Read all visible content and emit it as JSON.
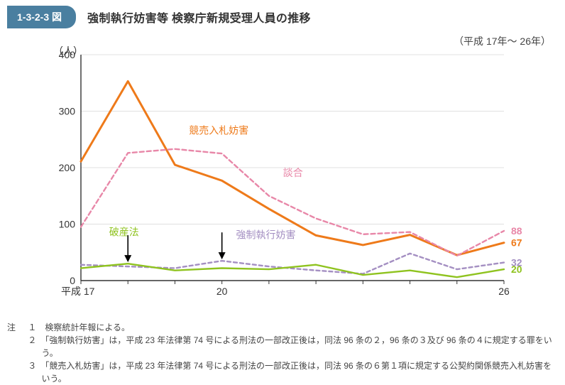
{
  "figure_tag": "1-3-2-3 図",
  "title": "強制執行妨害等 検察庁新規受理人員の推移",
  "subtitle": "（平成 17年～ 26年）",
  "notes_label": "注",
  "notes": [
    "１　検察統計年報による。",
    "２　「強制執行妨害」は，平成 23 年法律第 74 号による刑法の一部改正後は，同法 96 条の２，96 条の３及び 96 条の４に規定する罪をいう。",
    "３　「競売入札妨害」は，平成 23 年法律第 74 号による刑法の一部改正後は，同法 96 条の６第１項に規定する公契約関係競売入札妨害をいう。"
  ],
  "chart": {
    "type": "line",
    "x_label_prefix": "平成",
    "y_unit_label": "（人）",
    "background_color": "#ffffff",
    "axis_color": "#333333",
    "grid_color": "#e0e0e0",
    "label_fontsize": 14,
    "tick_fontsize": 14,
    "ylim": [
      0,
      400
    ],
    "ytick_step": 100,
    "x_categories": [
      "17",
      "18",
      "19",
      "20",
      "21",
      "22",
      "23",
      "24",
      "25",
      "26"
    ],
    "x_visible_ticks": [
      "17",
      "20",
      "26"
    ],
    "series": [
      {
        "key": "kyobai",
        "name": "競売入札妨害",
        "color": "#ee7a1a",
        "dash": "none",
        "width": 3,
        "label_x": 2.3,
        "label_y": 260,
        "end_value_label": "67",
        "values": [
          211,
          353,
          205,
          177,
          127,
          80,
          63,
          81,
          45,
          67
        ]
      },
      {
        "key": "dango",
        "name": "談合",
        "color": "#e887a8",
        "dash": "6,4",
        "width": 2.4,
        "label_x": 4.3,
        "label_y": 185,
        "end_value_label": "88",
        "values": [
          95,
          226,
          233,
          225,
          150,
          110,
          82,
          86,
          44,
          88
        ]
      },
      {
        "key": "kyosei",
        "name": "強制執行妨害",
        "color": "#a48fc2",
        "dash": "5,4",
        "width": 2.4,
        "label_x": 3.3,
        "label_y": 75,
        "arrow_at": 3,
        "end_value_label": "32",
        "values": [
          28,
          25,
          22,
          35,
          25,
          18,
          12,
          48,
          20,
          32
        ]
      },
      {
        "key": "hasan",
        "name": "破産法",
        "color": "#8fc31f",
        "dash": "none",
        "width": 2.4,
        "label_x": 0.6,
        "label_y": 80,
        "arrow_at": 1,
        "end_value_label": "20",
        "values": [
          22,
          30,
          18,
          22,
          20,
          28,
          10,
          18,
          6,
          20
        ]
      }
    ]
  }
}
